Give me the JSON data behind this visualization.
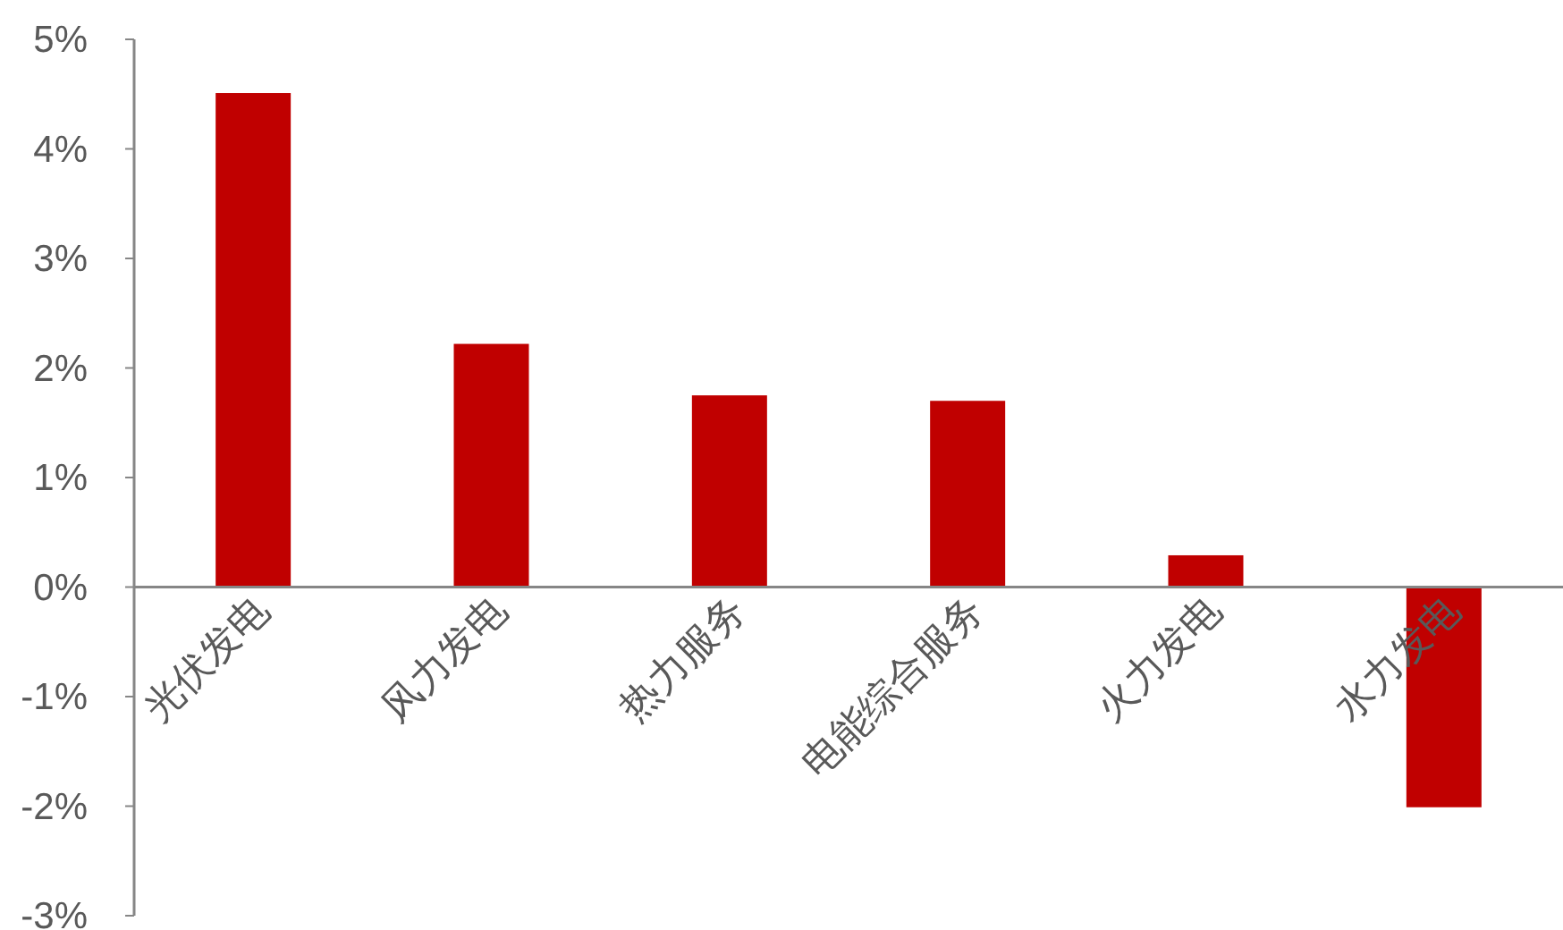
{
  "chart_data": {
    "type": "bar",
    "categories": [
      "光伏发电",
      "风力发电",
      "热力服务",
      "电能综合服务",
      "火力发电",
      "水力发电"
    ],
    "values": [
      4.51,
      2.22,
      1.75,
      1.7,
      0.29,
      -2.01
    ],
    "color": "#c00000",
    "ylim": [
      -3,
      5
    ],
    "yticks": [
      {
        "value": -3,
        "label": "-3%"
      },
      {
        "value": -2,
        "label": "-2%"
      },
      {
        "value": -1,
        "label": "-1%"
      },
      {
        "value": 0,
        "label": "0%"
      },
      {
        "value": 1,
        "label": "1%"
      },
      {
        "value": 2,
        "label": "2%"
      },
      {
        "value": 3,
        "label": "3%"
      },
      {
        "value": 4,
        "label": "4%"
      },
      {
        "value": 5,
        "label": "5%"
      }
    ]
  }
}
